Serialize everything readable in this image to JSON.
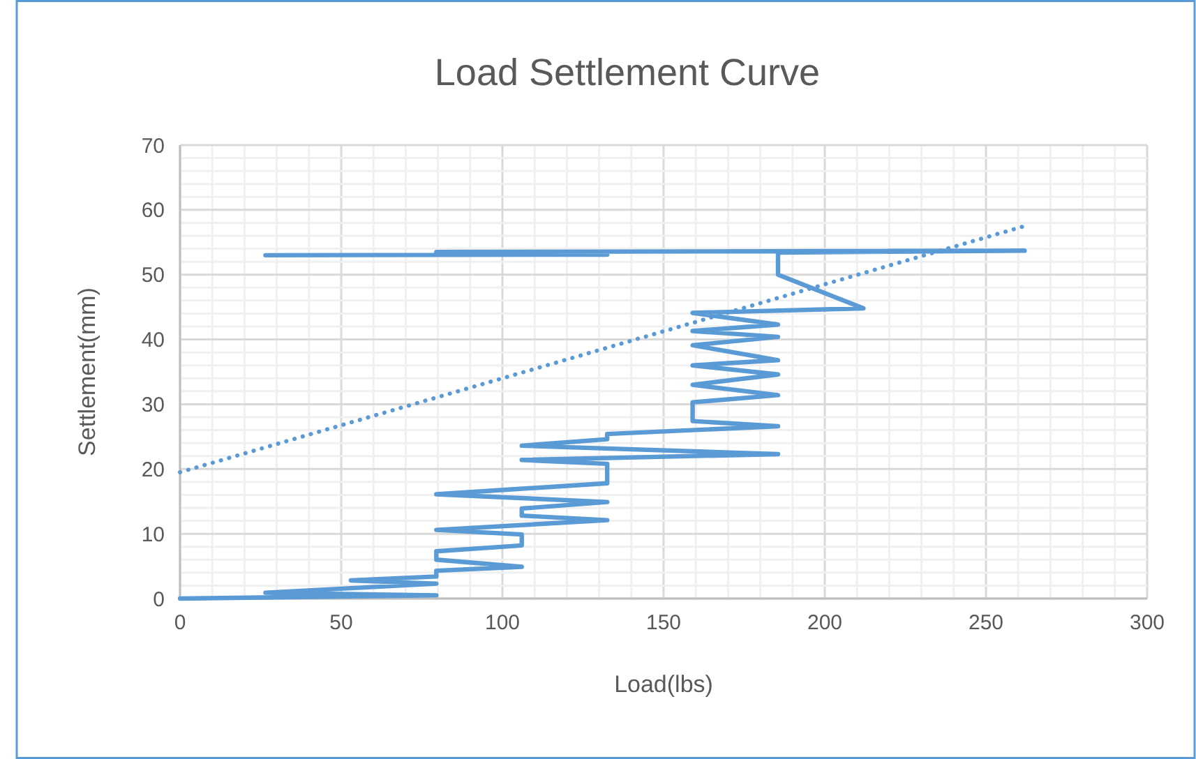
{
  "chart_data": {
    "type": "line",
    "title": "Load Settlement Curve",
    "xlabel": "Load(lbs)",
    "ylabel": "Settlement(mm)",
    "xlim": [
      0,
      300
    ],
    "ylim": [
      0,
      70
    ],
    "xticks": [
      0,
      {
        "value": 10,
        "label": null
      },
      {
        "value": 20,
        "label": null
      },
      {
        "value": 30,
        "label": null
      },
      {
        "value": 40,
        "label": null
      },
      50,
      {
        "value": 60,
        "label": null
      },
      {
        "value": 70,
        "label": null
      },
      {
        "value": 80,
        "label": null
      },
      {
        "value": 90,
        "label": null
      },
      100,
      {
        "value": 110,
        "label": null
      },
      {
        "value": 120,
        "label": null
      },
      {
        "value": 130,
        "label": null
      },
      {
        "value": 140,
        "label": null
      },
      150,
      {
        "value": 160,
        "label": null
      },
      {
        "value": 170,
        "label": null
      },
      {
        "value": 180,
        "label": null
      },
      {
        "value": 190,
        "label": null
      },
      200,
      {
        "value": 210,
        "label": null
      },
      {
        "value": 220,
        "label": null
      },
      {
        "value": 230,
        "label": null
      },
      {
        "value": 240,
        "label": null
      },
      250,
      {
        "value": 260,
        "label": null
      },
      {
        "value": 270,
        "label": null
      },
      {
        "value": 280,
        "label": null
      },
      {
        "value": 290,
        "label": null
      },
      300
    ],
    "yticks": [
      0,
      {
        "value": 2,
        "label": null
      },
      {
        "value": 4,
        "label": null
      },
      {
        "value": 6,
        "label": null
      },
      {
        "value": 8,
        "label": null
      },
      10,
      {
        "value": 12,
        "label": null
      },
      {
        "value": 14,
        "label": null
      },
      {
        "value": 16,
        "label": null
      },
      {
        "value": 18,
        "label": null
      },
      20,
      {
        "value": 22,
        "label": null
      },
      {
        "value": 24,
        "label": null
      },
      {
        "value": 26,
        "label": null
      },
      {
        "value": 28,
        "label": null
      },
      30,
      {
        "value": 32,
        "label": null
      },
      {
        "value": 34,
        "label": null
      },
      {
        "value": 36,
        "label": null
      },
      {
        "value": 38,
        "label": null
      },
      40,
      {
        "value": 42,
        "label": null
      },
      {
        "value": 44,
        "label": null
      },
      {
        "value": 46,
        "label": null
      },
      {
        "value": 48,
        "label": null
      },
      50,
      {
        "value": 52,
        "label": null
      },
      {
        "value": 54,
        "label": null
      },
      {
        "value": 56,
        "label": null
      },
      {
        "value": 58,
        "label": null
      },
      60,
      {
        "value": 62,
        "label": null
      },
      {
        "value": 64,
        "label": null
      },
      {
        "value": 66,
        "label": null
      },
      {
        "value": 68,
        "label": null
      },
      70
    ],
    "grid": true,
    "series": [
      {
        "color": "#5b9bd5",
        "line_style": "solid",
        "x": [
          0,
          79.5,
          26.5,
          53,
          79.5,
          53,
          79.5,
          79.5,
          106,
          79.5,
          79.5,
          106,
          106,
          79.5,
          132.5,
          106,
          106,
          132.5,
          79.5,
          132.5,
          132.5,
          106,
          185.5,
          106,
          132.5,
          132.5,
          185.5,
          159,
          159,
          185.5,
          159,
          185.5,
          159,
          185.5,
          159,
          185.5,
          159,
          185.5,
          159,
          212,
          185.5,
          185.5,
          262,
          79.5,
          132.5,
          26.5
        ],
        "values": [
          0,
          0.5,
          0.9,
          1.6,
          2.3,
          2.8,
          3.4,
          4.3,
          4.9,
          6.0,
          7.3,
          8.2,
          9.9,
          10.6,
          12.1,
          12.8,
          13.9,
          14.9,
          16.1,
          17.8,
          20.8,
          21.4,
          22.3,
          23.6,
          24.6,
          25.4,
          26.6,
          27.4,
          30.3,
          31.4,
          33.0,
          34.6,
          36.0,
          36.8,
          39.1,
          40.4,
          41.3,
          42.3,
          44.1,
          44.8,
          50.0,
          53.4,
          53.7,
          53.5,
          53.1,
          53.0
        ]
      },
      {
        "color": "#5b9bd5",
        "line_style": "dotted",
        "x": [
          0,
          262
        ],
        "values": [
          19.5,
          57.5
        ]
      }
    ]
  }
}
